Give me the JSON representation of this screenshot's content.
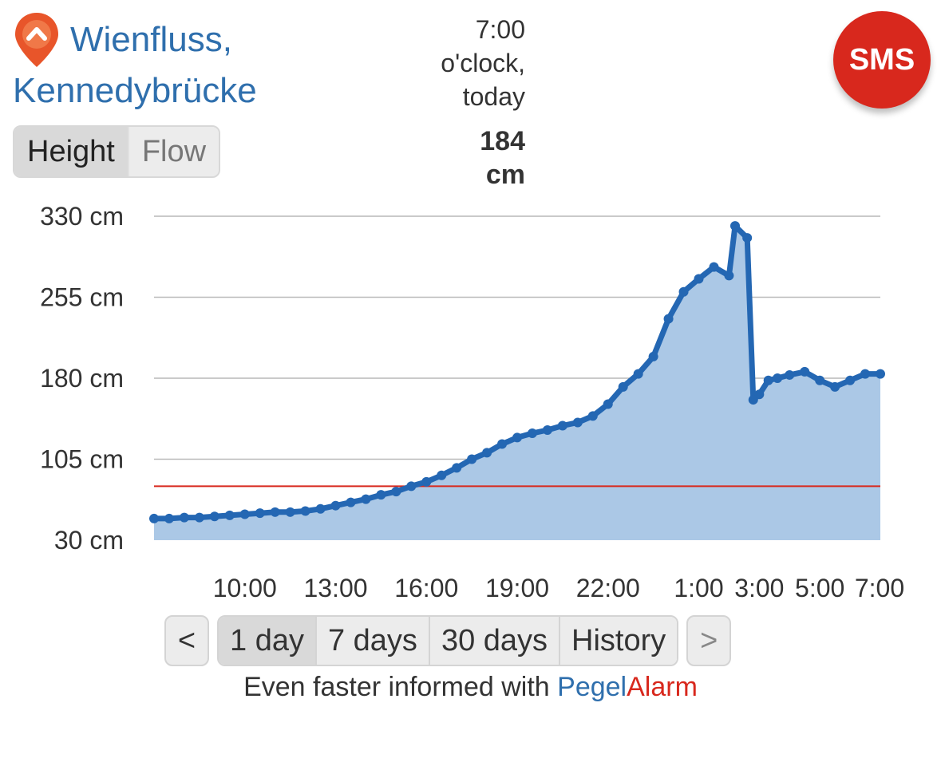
{
  "station": {
    "name_line1": "Wienfluss,",
    "name_line2": "Kennedybrücke"
  },
  "reading": {
    "time_line1": "7:00",
    "time_line2": "o'clock,",
    "time_line3": "today",
    "value": "184",
    "unit": "cm"
  },
  "sms_button": {
    "label": "SMS"
  },
  "toggle": {
    "height_label": "Height",
    "flow_label": "Flow",
    "selected": "Height"
  },
  "range_nav": {
    "prev_label": "<",
    "next_label": ">",
    "options": [
      "1 day",
      "7 days",
      "30 days",
      "History"
    ],
    "selected": "1 day"
  },
  "footer": {
    "prefix": "Even faster informed with ",
    "brand_part1": "Pegel",
    "brand_part2": "Alarm"
  },
  "colors": {
    "accent_blue": "#2f6fad",
    "line_blue": "#2467b3",
    "area_blue": "#abc8e6",
    "alarm_red": "#d8281d"
  },
  "icons": {
    "location": "location-pin-icon"
  },
  "chart_data": {
    "type": "area",
    "y_tick_labels": [
      "330 cm",
      "255 cm",
      "180 cm",
      "105 cm",
      "30 cm"
    ],
    "ylim": [
      30,
      330
    ],
    "x_tick_labels": [
      "10:00",
      "13:00",
      "16:00",
      "19:00",
      "22:00",
      "1:00",
      "3:00",
      "5:00",
      "7:00"
    ],
    "x_tick_hours": [
      10,
      13,
      16,
      19,
      22,
      25,
      27,
      29,
      31
    ],
    "xlim_hours": [
      7.0,
      31.0
    ],
    "alarm_level_cm": 80,
    "grid": true,
    "series": [
      {
        "x_hours": [
          7.0,
          7.5,
          8.0,
          8.5,
          9.0,
          9.5,
          10.0,
          10.5,
          11.0,
          11.5,
          12.0,
          12.5,
          13.0,
          13.5,
          14.0,
          14.5,
          15.0,
          15.5,
          16.0,
          16.5,
          17.0,
          17.5,
          18.0,
          18.5,
          19.0,
          19.5,
          20.0,
          20.5,
          21.0,
          21.5,
          22.0,
          22.5,
          23.0,
          23.5,
          24.0,
          24.5,
          25.0,
          25.5,
          26.0,
          26.2,
          26.6,
          26.8,
          27.0,
          27.3,
          27.6,
          28.0,
          28.5,
          29.0,
          29.5,
          30.0,
          30.5,
          31.0
        ],
        "values": [
          50,
          50,
          51,
          51,
          52,
          53,
          54,
          55,
          56,
          56,
          57,
          59,
          62,
          65,
          68,
          72,
          75,
          80,
          84,
          90,
          97,
          105,
          111,
          119,
          125,
          129,
          132,
          136,
          139,
          145,
          156,
          172,
          184,
          200,
          235,
          260,
          272,
          283,
          275,
          321,
          310,
          160,
          165,
          178,
          180,
          183,
          186,
          178,
          172,
          178,
          184,
          184
        ]
      }
    ]
  }
}
